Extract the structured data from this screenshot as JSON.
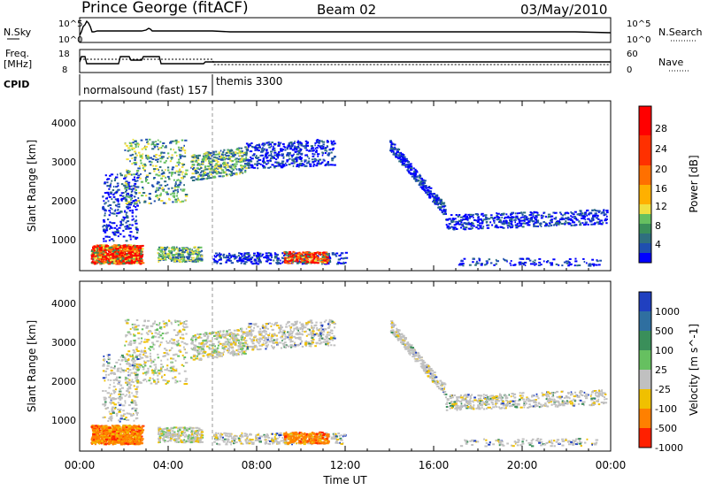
{
  "header": {
    "station": "Prince George (fitACF)",
    "beam": "Beam 02",
    "date": "03/May/2010"
  },
  "panels": {
    "nsky_label": "N.Sky",
    "nsearch_label": "N.Search",
    "freq_label_line1": "Freq.",
    "freq_label_line2": "[MHz]",
    "nave_label": "Nave",
    "cpid_label": "CPID",
    "nsky_ticks": [
      "10^5",
      "10^0"
    ],
    "nsearch_ticks": [
      "10^5",
      "10^0"
    ],
    "freq_ticks": [
      "18",
      "8"
    ],
    "nave_ticks": [
      "60",
      "0"
    ],
    "cpid_entries": [
      {
        "text": "normalsound (fast) 157",
        "start_hour": 0.0
      },
      {
        "text": "themis 3300",
        "start_hour": 6.0
      }
    ]
  },
  "chart_data": [
    {
      "type": "heatmap",
      "name": "power",
      "ylabel": "Slant Range [km]",
      "y_ticks": [
        1000,
        2000,
        3000,
        4000
      ],
      "colorbar_label": "Power [dB]",
      "colorbar_ticks": [
        "28",
        "24",
        "20",
        "16",
        "12",
        "8",
        "4"
      ],
      "colors": [
        "#0000ff",
        "#1f4fb0",
        "#2f6f7f",
        "#3a8f5a",
        "#66c060",
        "#f0e040",
        "#ffb000",
        "#ff7000",
        "#ff3000",
        "#ff0000"
      ]
    },
    {
      "type": "heatmap",
      "name": "velocity",
      "ylabel": "Slant Range [km]",
      "y_ticks": [
        1000,
        2000,
        3000,
        4000
      ],
      "colorbar_label": "Velocity [m s^-1]",
      "colorbar_ticks": [
        "1000",
        "500",
        "100",
        "25",
        "-25",
        "-100",
        "-500",
        "-1000"
      ],
      "colors": [
        "#2040c0",
        "#2f6fa0",
        "#3a8f5a",
        "#66c060",
        "#c0c0c0",
        "#f0c000",
        "#ff8000",
        "#ff2000"
      ]
    }
  ],
  "x_axis": {
    "label": "Time UT",
    "tick_labels": [
      "00:00",
      "04:00",
      "08:00",
      "12:00",
      "16:00",
      "20:00",
      "00:00"
    ]
  }
}
